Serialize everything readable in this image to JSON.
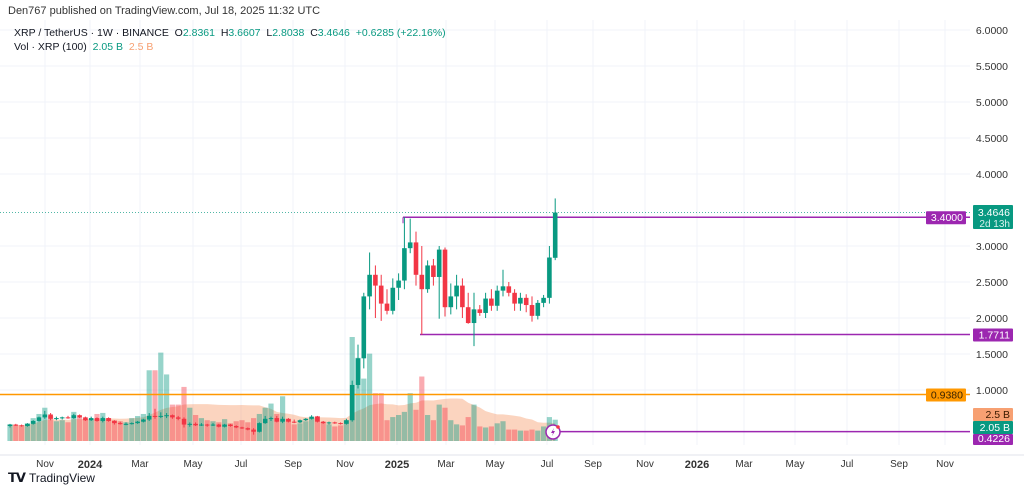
{
  "header": {
    "published": "Den767 published on TradingView.com, Jul 18, 2025 11:32 UTC"
  },
  "legend": {
    "symbol": "XRP / TetherUS · 1W · BINANCE",
    "open_label": "O",
    "open": "2.8361",
    "high_label": "H",
    "high": "3.6607",
    "low_label": "L",
    "low": "2.8038",
    "close_label": "C",
    "close": "3.4646",
    "change": "+0.6285 (+22.16%)",
    "volume_title": "Vol · XRP (100)",
    "volume_value": "2.05 B",
    "volume_ma": "2.5 B"
  },
  "brand": {
    "name": "TradingView",
    "logo_text": "TV"
  },
  "colors": {
    "up": "#089981",
    "down": "#f23645",
    "level": "#9c27b0",
    "orange_level": "#ff9800",
    "volume_ma": "#f7a072"
  },
  "chart_data": {
    "type": "candlestick",
    "timeframe": "1W",
    "price_scale": "linear",
    "y_ticks": [
      "6.0000",
      "5.5000",
      "5.0000",
      "4.5000",
      "4.0000",
      "3.0000",
      "2.5000",
      "2.0000",
      "1.5000",
      "1.0000"
    ],
    "x_ticks": [
      "Nov",
      "2024",
      "Mar",
      "May",
      "Jul",
      "Sep",
      "Nov",
      "2025",
      "Mar",
      "May",
      "Jul",
      "Sep",
      "Nov",
      "2026",
      "Mar",
      "May",
      "Jul",
      "Sep",
      "Nov"
    ],
    "candles_ohlcv_billions": [
      [
        0.5,
        0.53,
        0.48,
        0.52,
        1.6
      ],
      [
        0.52,
        0.53,
        0.5,
        0.51,
        1.5
      ],
      [
        0.51,
        0.52,
        0.49,
        0.5,
        1.4
      ],
      [
        0.5,
        0.54,
        0.49,
        0.53,
        1.7
      ],
      [
        0.53,
        0.58,
        0.52,
        0.57,
        2.2
      ],
      [
        0.57,
        0.63,
        0.56,
        0.62,
        2.6
      ],
      [
        0.62,
        0.71,
        0.6,
        0.66,
        3.2
      ],
      [
        0.66,
        0.68,
        0.58,
        0.6,
        2.4
      ],
      [
        0.6,
        0.63,
        0.58,
        0.61,
        1.9
      ],
      [
        0.61,
        0.63,
        0.59,
        0.62,
        2.0
      ],
      [
        0.62,
        0.64,
        0.6,
        0.61,
        1.8
      ],
      [
        0.61,
        0.67,
        0.6,
        0.65,
        2.8
      ],
      [
        0.65,
        0.66,
        0.61,
        0.62,
        2.3
      ],
      [
        0.62,
        0.63,
        0.57,
        0.58,
        2.1
      ],
      [
        0.58,
        0.63,
        0.57,
        0.61,
        2.0
      ],
      [
        0.61,
        0.62,
        0.56,
        0.57,
        2.6
      ],
      [
        0.57,
        0.63,
        0.55,
        0.61,
        2.7
      ],
      [
        0.61,
        0.62,
        0.56,
        0.57,
        2.2
      ],
      [
        0.57,
        0.58,
        0.52,
        0.54,
        2.0
      ],
      [
        0.54,
        0.56,
        0.52,
        0.53,
        1.9
      ],
      [
        0.53,
        0.55,
        0.51,
        0.53,
        1.8
      ],
      [
        0.53,
        0.55,
        0.52,
        0.54,
        2.2
      ],
      [
        0.54,
        0.57,
        0.53,
        0.56,
        2.4
      ],
      [
        0.56,
        0.6,
        0.55,
        0.59,
        2.6
      ],
      [
        0.59,
        0.68,
        0.57,
        0.64,
        6.8
      ],
      [
        0.64,
        0.74,
        0.6,
        0.63,
        6.8
      ],
      [
        0.63,
        0.69,
        0.61,
        0.64,
        8.5
      ],
      [
        0.64,
        0.68,
        0.61,
        0.65,
        6.4
      ],
      [
        0.65,
        0.66,
        0.6,
        0.62,
        3.5
      ],
      [
        0.62,
        0.64,
        0.58,
        0.6,
        3.5
      ],
      [
        0.6,
        0.62,
        0.48,
        0.52,
        5.2
      ],
      [
        0.52,
        0.55,
        0.49,
        0.53,
        3.2
      ],
      [
        0.53,
        0.55,
        0.5,
        0.51,
        2.5
      ],
      [
        0.51,
        0.54,
        0.5,
        0.52,
        2.2
      ],
      [
        0.52,
        0.53,
        0.49,
        0.51,
        2.0
      ],
      [
        0.51,
        0.54,
        0.5,
        0.52,
        1.9
      ],
      [
        0.52,
        0.53,
        0.48,
        0.49,
        1.8
      ],
      [
        0.49,
        0.53,
        0.48,
        0.52,
        2.1
      ],
      [
        0.52,
        0.53,
        0.49,
        0.5,
        1.7
      ],
      [
        0.5,
        0.51,
        0.47,
        0.48,
        1.9
      ],
      [
        0.48,
        0.49,
        0.46,
        0.47,
        2.0
      ],
      [
        0.47,
        0.48,
        0.44,
        0.45,
        1.8
      ],
      [
        0.45,
        0.47,
        0.38,
        0.42,
        2.2
      ],
      [
        0.42,
        0.55,
        0.41,
        0.54,
        2.6
      ],
      [
        0.54,
        0.64,
        0.53,
        0.6,
        3.2
      ],
      [
        0.6,
        0.63,
        0.57,
        0.61,
        3.6
      ],
      [
        0.61,
        0.64,
        0.55,
        0.56,
        2.6
      ],
      [
        0.56,
        0.63,
        0.54,
        0.6,
        4.3
      ],
      [
        0.6,
        0.61,
        0.55,
        0.56,
        2.1
      ],
      [
        0.56,
        0.59,
        0.54,
        0.55,
        1.6
      ],
      [
        0.55,
        0.59,
        0.54,
        0.58,
        1.7
      ],
      [
        0.58,
        0.61,
        0.57,
        0.6,
        1.9
      ],
      [
        0.6,
        0.65,
        0.59,
        0.63,
        2.2
      ],
      [
        0.63,
        0.64,
        0.55,
        0.56,
        2.4
      ],
      [
        0.56,
        0.57,
        0.53,
        0.54,
        1.8
      ],
      [
        0.54,
        0.56,
        0.52,
        0.55,
        1.6
      ],
      [
        0.55,
        0.56,
        0.53,
        0.54,
        1.4
      ],
      [
        0.54,
        0.55,
        0.52,
        0.53,
        1.5
      ],
      [
        0.53,
        0.6,
        0.52,
        0.58,
        2.0
      ],
      [
        0.58,
        1.13,
        0.56,
        1.07,
        10.0
      ],
      [
        1.07,
        1.63,
        1.02,
        1.44,
        8.0
      ],
      [
        1.44,
        2.35,
        1.3,
        2.3,
        6.0
      ],
      [
        2.3,
        2.91,
        2.12,
        2.6,
        8.4
      ],
      [
        2.6,
        2.73,
        2.0,
        2.45,
        4.6
      ],
      [
        2.45,
        2.6,
        1.96,
        2.2,
        4.6
      ],
      [
        2.2,
        2.4,
        2.05,
        2.1,
        2.0
      ],
      [
        2.1,
        2.55,
        2.05,
        2.42,
        2.3
      ],
      [
        2.42,
        2.62,
        2.25,
        2.52,
        2.5
      ],
      [
        2.52,
        3.4,
        2.4,
        2.97,
        2.8
      ],
      [
        2.97,
        3.38,
        2.9,
        3.05,
        4.6
      ],
      [
        3.05,
        3.2,
        2.45,
        2.6,
        3.0
      ],
      [
        2.6,
        3.0,
        1.77,
        2.4,
        6.2
      ],
      [
        2.4,
        2.8,
        2.35,
        2.73,
        2.5
      ],
      [
        2.73,
        2.82,
        2.45,
        2.57,
        2.0
      ],
      [
        2.57,
        3.0,
        1.99,
        2.95,
        3.5
      ],
      [
        2.95,
        2.98,
        2.02,
        2.15,
        3.2
      ],
      [
        2.15,
        2.48,
        2.05,
        2.3,
        2.0
      ],
      [
        2.3,
        2.6,
        2.12,
        2.45,
        1.6
      ],
      [
        2.45,
        2.55,
        2.0,
        2.15,
        1.5
      ],
      [
        2.15,
        2.35,
        1.92,
        1.93,
        2.3
      ],
      [
        1.93,
        2.35,
        1.61,
        2.12,
        3.5
      ],
      [
        2.12,
        2.18,
        2.03,
        2.07,
        1.4
      ],
      [
        2.07,
        2.35,
        2.0,
        2.27,
        1.3
      ],
      [
        2.27,
        2.4,
        2.1,
        2.17,
        1.4
      ],
      [
        2.17,
        2.45,
        2.1,
        2.38,
        1.7
      ],
      [
        2.38,
        2.67,
        2.3,
        2.44,
        1.9
      ],
      [
        2.44,
        2.5,
        2.3,
        2.35,
        1.1
      ],
      [
        2.35,
        2.4,
        2.1,
        2.2,
        1.1
      ],
      [
        2.2,
        2.35,
        2.1,
        2.28,
        1.0
      ],
      [
        2.28,
        2.33,
        2.08,
        2.18,
        1.0
      ],
      [
        2.18,
        2.3,
        1.95,
        2.03,
        1.1
      ],
      [
        2.03,
        2.25,
        1.98,
        2.21,
        1.0
      ],
      [
        2.21,
        2.32,
        2.15,
        2.28,
        1.4
      ],
      [
        2.28,
        3.0,
        2.2,
        2.84,
        2.3
      ],
      [
        2.8361,
        3.6607,
        2.8038,
        3.4646,
        2.05
      ]
    ],
    "horizontal_levels": [
      {
        "price": 3.4,
        "label": "3.4000",
        "color": "#9c27b0"
      },
      {
        "price": 1.7711,
        "label": "1.7711",
        "color": "#9c27b0"
      },
      {
        "price": 0.938,
        "label": "0.9380",
        "color": "#ff9800"
      },
      {
        "price": 0.4226,
        "label": "0.4226",
        "color": "#9c27b0"
      }
    ],
    "last_price": {
      "label": "3.4646",
      "countdown": "2d 13h",
      "color": "#089981"
    },
    "volume_labels": {
      "ma": "2.5 B",
      "current": "2.05 B"
    }
  }
}
